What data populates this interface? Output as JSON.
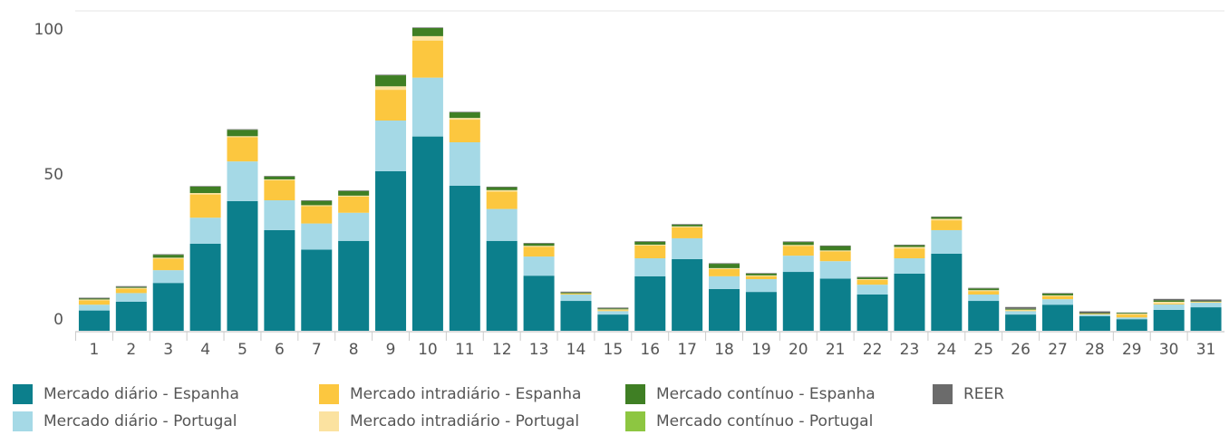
{
  "chart_data": {
    "type": "stacked_bar",
    "categories": [
      "1",
      "2",
      "3",
      "4",
      "5",
      "6",
      "7",
      "8",
      "9",
      "10",
      "11",
      "12",
      "13",
      "14",
      "15",
      "16",
      "17",
      "18",
      "19",
      "20",
      "21",
      "22",
      "23",
      "24",
      "25",
      "26",
      "27",
      "28",
      "29",
      "30",
      "31"
    ],
    "series": [
      {
        "name": "Mercado diário - Espanha",
        "color": "#0c7f8c",
        "values": [
          7,
          10,
          16.5,
          30,
          44.7,
          34.7,
          28,
          31,
          55,
          67,
          50,
          31,
          19,
          10.3,
          5.6,
          18.8,
          24.7,
          14.4,
          13.4,
          20.3,
          18,
          12.5,
          19.7,
          26.6,
          10.3,
          5.6,
          9,
          5,
          4,
          7.2,
          8.1
        ]
      },
      {
        "name": "Mercado diário - Portugal",
        "color": "#a5d9e6",
        "values": [
          2,
          3,
          4.4,
          9,
          13.7,
          10.3,
          9,
          9.7,
          17.5,
          20.3,
          15,
          11,
          6.6,
          2.2,
          1.2,
          6.2,
          7.2,
          4.4,
          4.4,
          5.6,
          6,
          3.4,
          5.3,
          8.1,
          2.2,
          1.2,
          1.9,
          0.6,
          0.6,
          1.9,
          1.6
        ]
      },
      {
        "name": "Mercado intradiário - Espanha",
        "color": "#fcc73f",
        "values": [
          1.5,
          1.5,
          4,
          8,
          8.4,
          6.9,
          6,
          5.6,
          10.6,
          12.8,
          7.8,
          6,
          3.4,
          0.3,
          0.3,
          4.4,
          3.8,
          2.5,
          1,
          3.4,
          3.4,
          1.6,
          3.4,
          3.4,
          1.2,
          0.2,
          1,
          0.2,
          1,
          0.3,
          0.2
        ]
      },
      {
        "name": "Mercado intradiário - Portugal",
        "color": "#fbe2a0",
        "values": [
          0.3,
          0.3,
          0.3,
          0.5,
          0.3,
          0.3,
          0.3,
          0.3,
          1.2,
          1.5,
          0.6,
          0.5,
          0.3,
          0.1,
          0.3,
          0.3,
          0.3,
          0.3,
          0.3,
          0.3,
          0.3,
          0.3,
          0.5,
          0.5,
          0.3,
          0.3,
          0.3,
          0.1,
          0.3,
          0.6,
          0.1
        ]
      },
      {
        "name": "Mercado contínuo - Espanha",
        "color": "#3f7f24",
        "values": [
          0.3,
          0.3,
          1,
          2.2,
          2.2,
          1,
          1.5,
          1.6,
          3.8,
          2.8,
          1.9,
          1,
          0.8,
          0.3,
          0.3,
          1,
          0.6,
          1.5,
          0.6,
          1,
          1.5,
          0.6,
          0.6,
          0.6,
          0.6,
          0.3,
          0.6,
          0.2,
          0.3,
          0.5,
          0.2
        ]
      },
      {
        "name": "Mercado contínuo - Portugal",
        "color": "#8dc641",
        "values": [
          0,
          0,
          0,
          0,
          0,
          0,
          0,
          0,
          0,
          0,
          0,
          0,
          0,
          0,
          0,
          0,
          0,
          0,
          0,
          0,
          0,
          0,
          0,
          0,
          0,
          0,
          0,
          0,
          0,
          0,
          0
        ]
      },
      {
        "name": "REER",
        "color": "#6b6b6b",
        "values": [
          0.3,
          0.3,
          0.2,
          0.2,
          0.2,
          0.2,
          0.2,
          0.2,
          0.2,
          0.2,
          0.2,
          0.2,
          0.2,
          0.3,
          0.3,
          0.2,
          0.2,
          0.2,
          0.2,
          0.2,
          0.2,
          0.2,
          0.2,
          0.2,
          0.2,
          0.6,
          0.2,
          0.6,
          0.1,
          0.5,
          0.6
        ]
      }
    ],
    "ylim": [
      0,
      110
    ],
    "yticks": [
      0,
      50,
      100
    ],
    "grid": false,
    "legend": "bottom"
  }
}
